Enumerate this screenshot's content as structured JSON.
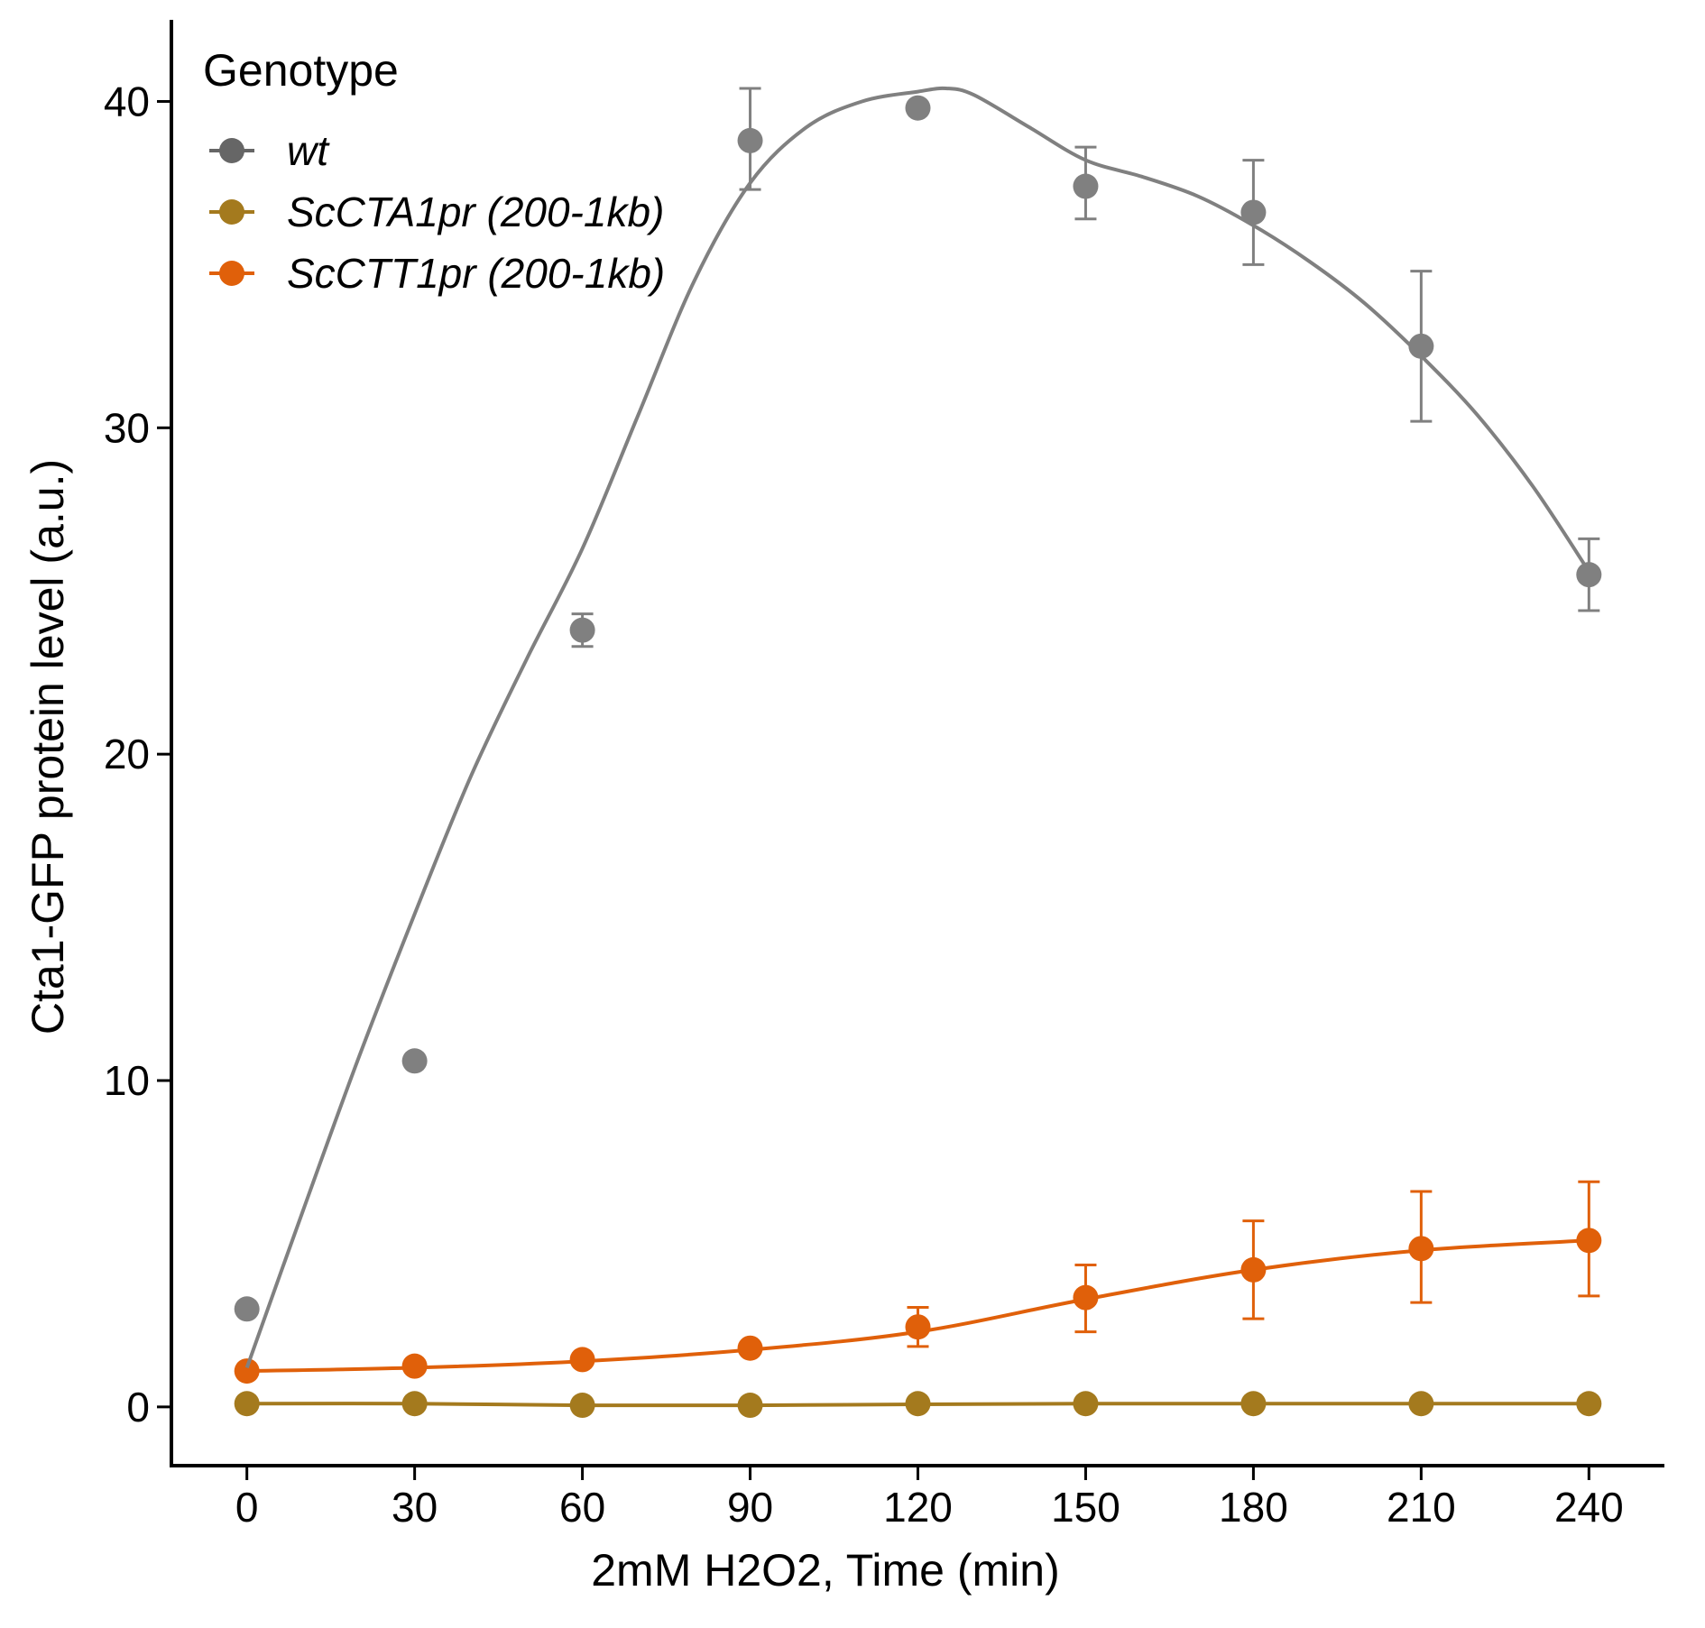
{
  "chart_data": {
    "type": "line",
    "title": "",
    "xlabel": "2mM H2O2, Time (min)",
    "ylabel": "Cta1-GFP protein level (a.u.)",
    "x": [
      0,
      30,
      60,
      90,
      120,
      150,
      180,
      210,
      240
    ],
    "x_ticks": [
      "0",
      "30",
      "60",
      "90",
      "120",
      "150",
      "180",
      "210",
      "240"
    ],
    "y_ticks": [
      "0",
      "10",
      "20",
      "30",
      "40"
    ],
    "xlim": [
      -13.5,
      253.5
    ],
    "ylim": [
      -1.8,
      42.5
    ],
    "grid": false,
    "legend": {
      "title": "Genotype",
      "position": "top-left"
    },
    "series": [
      {
        "name": "wt",
        "color": "#808080",
        "values": [
          3.0,
          10.6,
          23.8,
          38.8,
          39.8,
          37.4,
          36.6,
          32.5,
          25.5
        ],
        "err_low": [
          null,
          null,
          23.3,
          37.3,
          null,
          36.4,
          35.0,
          30.2,
          24.4
        ],
        "err_high": [
          null,
          null,
          24.3,
          40.4,
          null,
          38.6,
          38.2,
          34.8,
          26.6
        ],
        "smooth": [
          [
            0,
            1.2
          ],
          [
            10,
            6.0
          ],
          [
            20,
            10.7
          ],
          [
            30,
            15.1
          ],
          [
            40,
            19.3
          ],
          [
            50,
            22.9
          ],
          [
            60,
            26.3
          ],
          [
            70,
            30.4
          ],
          [
            80,
            34.5
          ],
          [
            90,
            37.5
          ],
          [
            100,
            39.2
          ],
          [
            110,
            40.0
          ],
          [
            120,
            40.3
          ],
          [
            125,
            40.4
          ],
          [
            130,
            40.2
          ],
          [
            140,
            39.2
          ],
          [
            150,
            38.2
          ],
          [
            160,
            37.7
          ],
          [
            170,
            37.1
          ],
          [
            180,
            36.2
          ],
          [
            190,
            35.1
          ],
          [
            200,
            33.8
          ],
          [
            210,
            32.2
          ],
          [
            220,
            30.4
          ],
          [
            230,
            28.2
          ],
          [
            240,
            25.6
          ]
        ]
      },
      {
        "name": "ScCTA1pr (200-1kb)",
        "color": "#A47A1E",
        "values": [
          0.1,
          0.1,
          0.05,
          0.05,
          0.1,
          0.1,
          0.1,
          0.1,
          0.1
        ],
        "err_low": [
          null,
          null,
          null,
          null,
          null,
          null,
          null,
          null,
          null
        ],
        "err_high": [
          null,
          null,
          null,
          null,
          null,
          null,
          null,
          null,
          null
        ],
        "smooth": [
          [
            0,
            0.1
          ],
          [
            30,
            0.1
          ],
          [
            60,
            0.05
          ],
          [
            90,
            0.05
          ],
          [
            120,
            0.08
          ],
          [
            150,
            0.1
          ],
          [
            180,
            0.1
          ],
          [
            210,
            0.1
          ],
          [
            240,
            0.1
          ]
        ]
      },
      {
        "name": "ScCTT1pr (200-1kb)",
        "color": "#E0600A",
        "values": [
          1.1,
          1.25,
          1.45,
          1.8,
          2.45,
          3.35,
          4.2,
          4.85,
          5.1
        ],
        "err_low": [
          null,
          null,
          null,
          null,
          1.85,
          2.3,
          2.7,
          3.2,
          3.4
        ],
        "err_high": [
          null,
          null,
          null,
          null,
          3.05,
          4.35,
          5.7,
          6.6,
          6.9
        ],
        "smooth": [
          [
            0,
            1.1
          ],
          [
            30,
            1.2
          ],
          [
            60,
            1.4
          ],
          [
            90,
            1.75
          ],
          [
            120,
            2.3
          ],
          [
            150,
            3.3
          ],
          [
            180,
            4.2
          ],
          [
            210,
            4.8
          ],
          [
            240,
            5.1
          ]
        ]
      }
    ]
  }
}
